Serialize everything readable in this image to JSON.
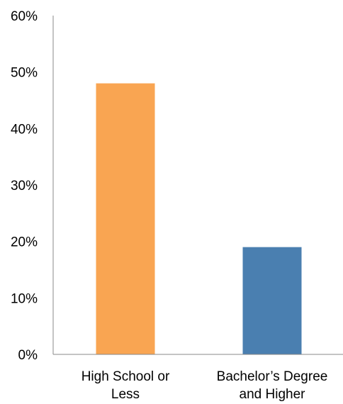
{
  "chart_data": {
    "type": "bar",
    "categories": [
      [
        "High School or",
        "Less"
      ],
      [
        "Bachelor’s Degree",
        "and Higher"
      ]
    ],
    "values": [
      48,
      19
    ],
    "colors": [
      "#F9A552",
      "#4A7FB0"
    ],
    "value_format": "percent",
    "ylim": [
      0,
      60
    ],
    "y_ticks": [
      "0%",
      "10%",
      "20%",
      "30%",
      "40%",
      "50%",
      "60%"
    ],
    "title": "",
    "xlabel": "",
    "ylabel": "",
    "grid": false,
    "legend": "none"
  }
}
